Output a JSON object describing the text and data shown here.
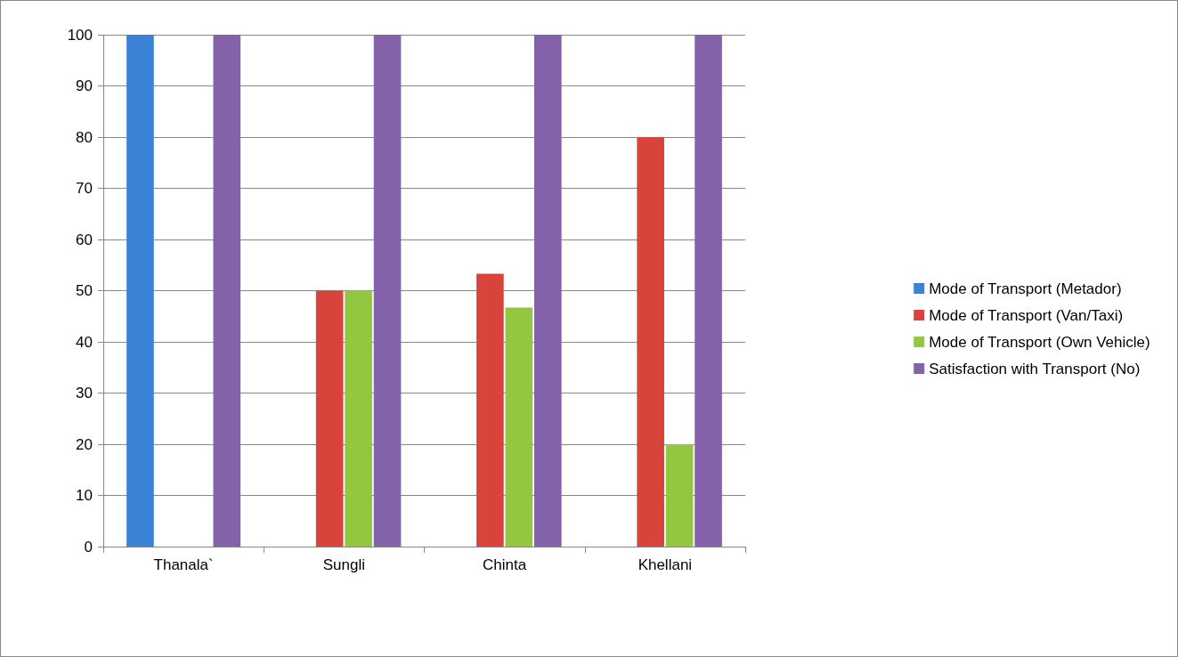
{
  "chart_data": {
    "type": "bar",
    "categories": [
      "Thanala`",
      "Sungli",
      "Chinta",
      "Khellani"
    ],
    "series": [
      {
        "name": "Mode of Transport (Metador)",
        "color": "#3b82d6",
        "values": [
          100,
          null,
          null,
          null
        ]
      },
      {
        "name": "Mode of Transport (Van/Taxi)",
        "color": "#d8433b",
        "values": [
          null,
          50,
          53.3,
          80
        ]
      },
      {
        "name": "Mode of Transport (Own Vehicle)",
        "color": "#93c740",
        "values": [
          null,
          50,
          46.7,
          20
        ]
      },
      {
        "name": "Satisfaction with Transport (No)",
        "color": "#8462aa",
        "values": [
          100,
          100,
          100,
          100
        ]
      }
    ],
    "ylim": [
      0,
      100
    ],
    "yticks": [
      0,
      10,
      20,
      30,
      40,
      50,
      60,
      70,
      80,
      90,
      100
    ],
    "grid": "y",
    "legend": "right"
  }
}
